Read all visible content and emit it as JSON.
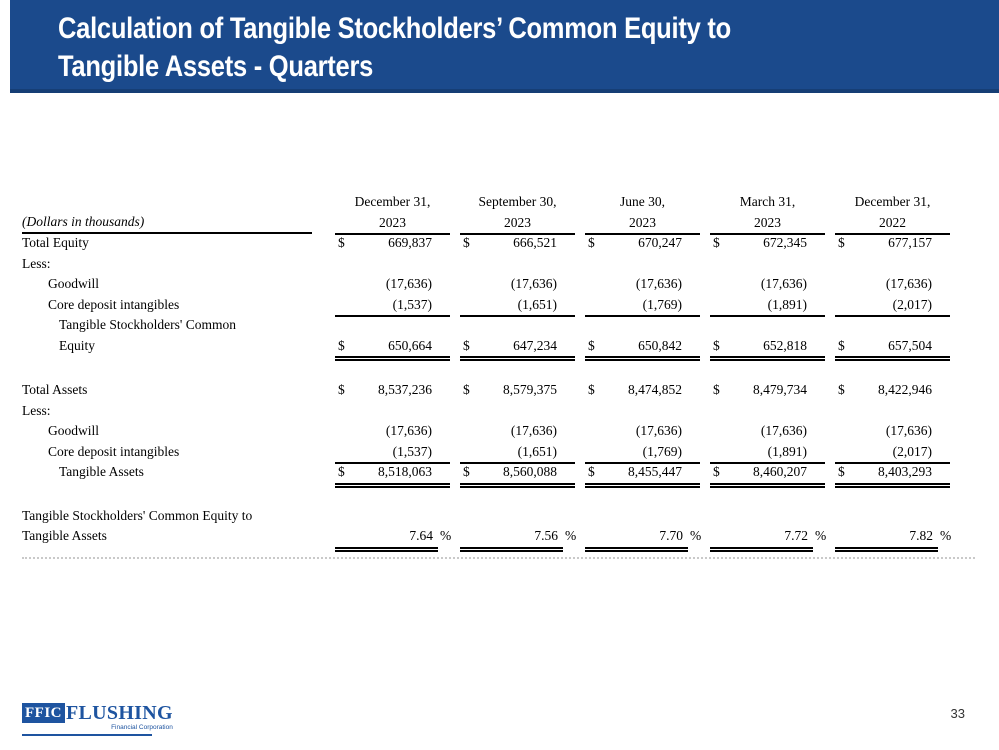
{
  "slide": {
    "title_line1": "Calculation of Tangible Stockholders’ Common Equity to",
    "title_line2": "Tangible Assets - Quarters",
    "page_number": "33"
  },
  "colors": {
    "banner_blue": "#1b4a8c",
    "banner_edge": "#163e75",
    "logo_blue": "#1e54a0"
  },
  "logo": {
    "acronym": "FFIC",
    "name": "FLUSHING",
    "subtitle": "Financial Corporation"
  },
  "table": {
    "units_label": "(Dollars in thousands)",
    "dollar_sign": "$",
    "percent_sign": "%",
    "columns": [
      {
        "line1": "December 31,",
        "line2": "2023"
      },
      {
        "line1": "September 30,",
        "line2": "2023"
      },
      {
        "line1": "June 30,",
        "line2": "2023"
      },
      {
        "line1": "March 31,",
        "line2": "2023"
      },
      {
        "line1": "December 31,",
        "line2": "2022"
      }
    ],
    "rows": [
      {
        "label": "Total Equity",
        "indent": 0,
        "dollar": true,
        "values": [
          "669,837",
          "666,521",
          "670,247",
          "672,345",
          "677,157"
        ]
      },
      {
        "label": "Less:",
        "indent": 0
      },
      {
        "label": "Goodwill",
        "indent": 1,
        "values": [
          "(17,636)",
          "(17,636)",
          "(17,636)",
          "(17,636)",
          "(17,636)"
        ]
      },
      {
        "label": "Core deposit intangibles",
        "indent": 1,
        "underline": "single",
        "values": [
          "(1,537)",
          "(1,651)",
          "(1,769)",
          "(1,891)",
          "(2,017)"
        ]
      },
      {
        "label": "Tangible Stockholders' Common",
        "indent": 2
      },
      {
        "label": "Equity",
        "indent": 2,
        "dollar": true,
        "underline": "double",
        "values": [
          "650,664",
          "647,234",
          "650,842",
          "652,818",
          "657,504"
        ]
      },
      {
        "spacer": 1
      },
      {
        "label": "Total Assets",
        "indent": 0,
        "dollar": true,
        "values": [
          "8,537,236",
          "8,579,375",
          "8,474,852",
          "8,479,734",
          "8,422,946"
        ]
      },
      {
        "label": "Less:",
        "indent": 0
      },
      {
        "label": "Goodwill",
        "indent": 1,
        "values": [
          "(17,636)",
          "(17,636)",
          "(17,636)",
          "(17,636)",
          "(17,636)"
        ]
      },
      {
        "label": "Core deposit intangibles",
        "indent": 1,
        "underline": "single",
        "values": [
          "(1,537)",
          "(1,651)",
          "(1,769)",
          "(1,891)",
          "(2,017)"
        ]
      },
      {
        "label": "Tangible Assets",
        "indent": 2,
        "dollar": true,
        "underline": "double",
        "values": [
          "8,518,063",
          "8,560,088",
          "8,455,447",
          "8,460,207",
          "8,403,293"
        ]
      },
      {
        "spacer": 2
      },
      {
        "label": "Tangible Stockholders' Common Equity to",
        "indent": 0
      },
      {
        "label": "Tangible Assets",
        "indent": 0,
        "percent": true,
        "underline": "double",
        "values": [
          "7.64",
          "7.56",
          "7.70",
          "7.72",
          "7.82"
        ]
      }
    ]
  }
}
